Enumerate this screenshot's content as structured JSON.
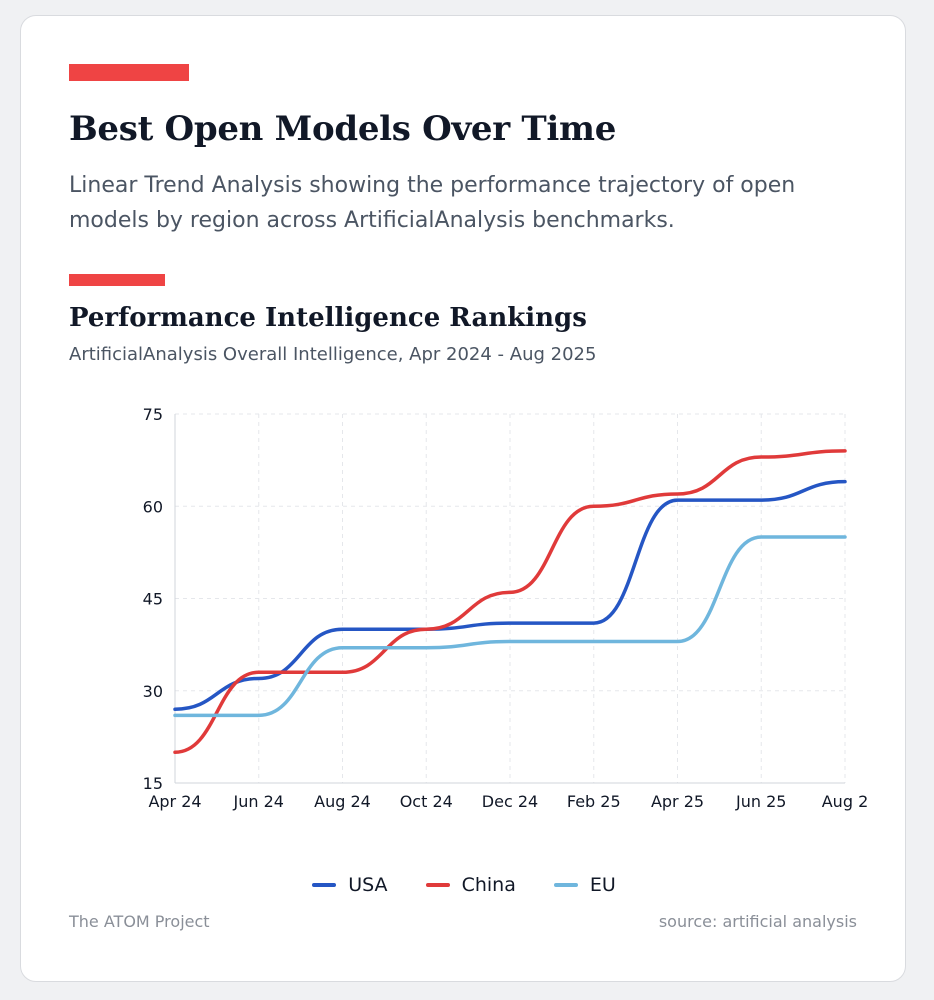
{
  "header": {
    "title": "Best Open Models Over Time",
    "subtitle": "Linear Trend Analysis showing the performance trajectory of open models by region across ArtificialAnalysis benchmarks."
  },
  "section": {
    "title": "Performance Intelligence Rankings",
    "subtitle": "ArtificialAnalysis Overall Intelligence, Apr 2024 - Aug 2025"
  },
  "footer": {
    "left": "The ATOM Project",
    "right": "source: artificial analysis"
  },
  "colors": {
    "accent": "#ef4444",
    "usa": "#2556c4",
    "china": "#e03a3a",
    "eu": "#6fb6dd",
    "grid": "#e5e7eb"
  },
  "chart_data": {
    "type": "line",
    "title": "Performance Intelligence Rankings",
    "subtitle": "ArtificialAnalysis Overall Intelligence, Apr 2024 - Aug 2025",
    "xlabel": "",
    "ylabel": "",
    "x": [
      "Apr 24",
      "Jun 24",
      "Aug 24",
      "Oct 24",
      "Dec 24",
      "Feb 25",
      "Apr 25",
      "Jun 25",
      "Aug 2"
    ],
    "yticks": [
      15,
      30,
      45,
      60,
      75
    ],
    "ylim": [
      15,
      75
    ],
    "grid": true,
    "legend_position": "bottom",
    "series": [
      {
        "name": "USA",
        "color": "#2556c4",
        "values": [
          27,
          32,
          40,
          40,
          41,
          41,
          61,
          61,
          64
        ]
      },
      {
        "name": "China",
        "color": "#e03a3a",
        "values": [
          20,
          33,
          33,
          40,
          46,
          60,
          62,
          68,
          69
        ]
      },
      {
        "name": "EU",
        "color": "#6fb6dd",
        "values": [
          26,
          26,
          37,
          37,
          38,
          38,
          38,
          55,
          55
        ]
      }
    ]
  }
}
